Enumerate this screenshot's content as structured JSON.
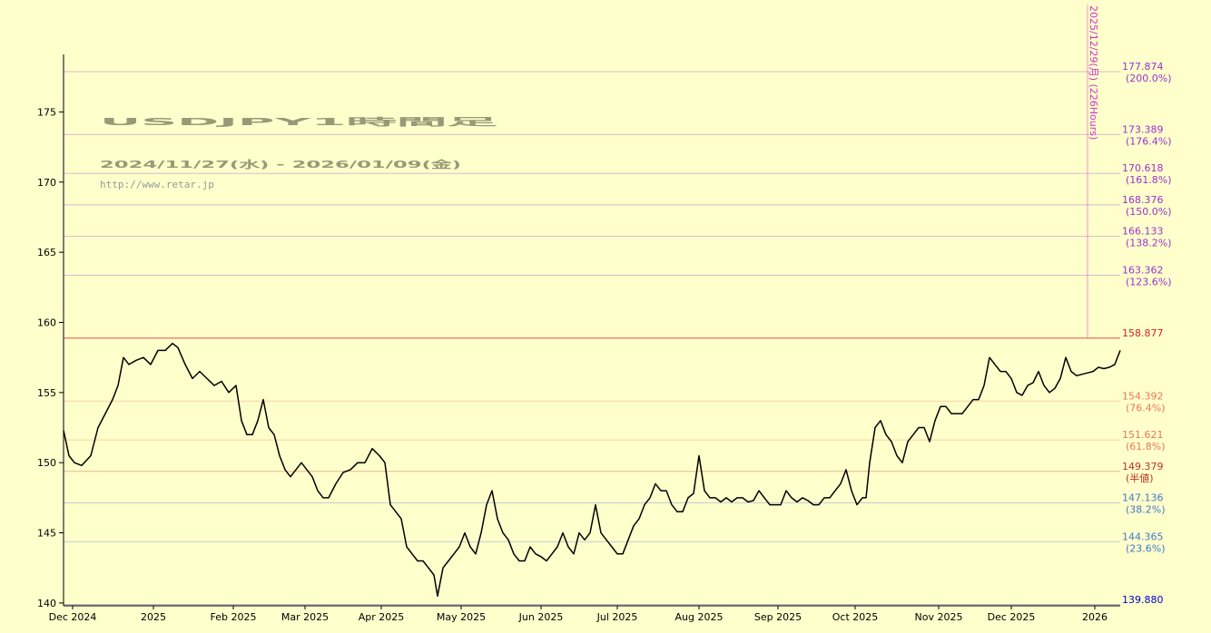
{
  "chart_data": {
    "type": "line",
    "title": "USDJPY1時間足",
    "subtitle": "2024/11/27(水) - 2026/01/09(金)",
    "url": "http://www.retar.jp",
    "color": "#000000",
    "x": [
      0,
      36,
      72,
      120,
      180,
      228,
      276,
      324,
      360,
      396,
      432,
      480,
      528,
      576,
      624,
      672,
      720,
      756,
      804,
      852,
      900,
      948,
      996,
      1044,
      1092,
      1140,
      1176,
      1212,
      1248,
      1284,
      1320,
      1356,
      1392,
      1428,
      1464,
      1500,
      1536,
      1572,
      1608,
      1644,
      1680,
      1716,
      1752,
      1800,
      1848,
      1896,
      1944,
      1992,
      2040,
      2088,
      2124,
      2160,
      2196,
      2232,
      2268,
      2304,
      2340,
      2376,
      2412,
      2448,
      2472,
      2508,
      2544,
      2580,
      2616,
      2652,
      2688,
      2724,
      2760,
      2796,
      2832,
      2868,
      2904,
      2940,
      2976,
      3012,
      3048,
      3084,
      3120,
      3156,
      3192,
      3228,
      3264,
      3300,
      3336,
      3372,
      3408,
      3444,
      3480,
      3516,
      3552,
      3588,
      3624,
      3660,
      3696,
      3732,
      3768,
      3804,
      3840,
      3876,
      3912,
      3948,
      3984,
      4020,
      4056,
      4092,
      4128,
      4164,
      4200,
      4236,
      4272,
      4308,
      4344,
      4380,
      4416,
      4452,
      4488,
      4524,
      4560,
      4596,
      4632,
      4668,
      4704,
      4740,
      4776,
      4812,
      4848,
      4884,
      4920,
      4956,
      4992,
      5028,
      5064,
      5100,
      5136,
      5172,
      5208,
      5244,
      5280,
      5304,
      5328,
      5364,
      5400,
      5436,
      5472,
      5508,
      5544,
      5580,
      5616,
      5652,
      5688,
      5724,
      5760,
      5796,
      5832,
      5868,
      5904,
      5940,
      5976,
      6012,
      6048,
      6084,
      6120,
      6156,
      6192,
      6228,
      6264,
      6300,
      6336,
      6372,
      6408,
      6444,
      6480,
      6516,
      6552,
      6588,
      6624,
      6660,
      6696,
      6732,
      6768,
      6804,
      6840,
      6876,
      6912,
      6948,
      6984
    ],
    "values": [
      152.3,
      150.5,
      150,
      149.8,
      150.5,
      152.5,
      153.5,
      154.5,
      155.5,
      157.5,
      157,
      157.3,
      157.5,
      157,
      158,
      158,
      158.5,
      158.2,
      157,
      156,
      156.5,
      156,
      155.5,
      155.8,
      155,
      155.5,
      153,
      152,
      152,
      153,
      154.5,
      152.5,
      152,
      150.5,
      149.5,
      149,
      149.5,
      150,
      149.5,
      149,
      148,
      147.5,
      147.5,
      148.5,
      149.3,
      149.5,
      150,
      150,
      151,
      150.5,
      150,
      147,
      146.5,
      146,
      144,
      143.5,
      143,
      143,
      142.5,
      142,
      140.5,
      142.5,
      143,
      143.5,
      144,
      145,
      144,
      143.5,
      145,
      147,
      148,
      146,
      145,
      144.5,
      143.5,
      143,
      143,
      144,
      143.5,
      143.3,
      143,
      143.5,
      144,
      145,
      144,
      143.5,
      145,
      144.5,
      145,
      147,
      145,
      144.5,
      144,
      143.5,
      143.5,
      144.5,
      145.5,
      146,
      147,
      147.5,
      148.5,
      148,
      148,
      147,
      146.5,
      146.5,
      147.5,
      147.8,
      150.5,
      148,
      147.5,
      147.5,
      147.2,
      147.5,
      147.2,
      147.5,
      147.5,
      147.2,
      147.3,
      148,
      147.5,
      147,
      147,
      147,
      148,
      147.5,
      147.2,
      147.5,
      147.3,
      147,
      147,
      147.5,
      147.5,
      148,
      148.5,
      149.5,
      148,
      147,
      147.5,
      147.5,
      150,
      152.5,
      153,
      152,
      151.5,
      150.5,
      150,
      151.5,
      152,
      152.5,
      152.5,
      151.5,
      153,
      154,
      154,
      153.5,
      153.5,
      153.5,
      154,
      154.5,
      154.5,
      155.5,
      157.5,
      157,
      156.5,
      156.5,
      156,
      155,
      154.8,
      155.5,
      155.7,
      156.5,
      155.5,
      155,
      155.3,
      156,
      157.5,
      156.5,
      156.2,
      156.3,
      156.4,
      156.5,
      156.8,
      156.7,
      156.8,
      157,
      158
    ],
    "xlim": [
      0,
      6984
    ],
    "xticks": [
      {
        "value": 60,
        "label": "Dec 2024"
      },
      {
        "value": 594,
        "label": "2025"
      },
      {
        "value": 1122,
        "label": "Feb 2025"
      },
      {
        "value": 1596,
        "label": "Mar 2025"
      },
      {
        "value": 2100,
        "label": "Apr 2025"
      },
      {
        "value": 2628,
        "label": "May 2025"
      },
      {
        "value": 3156,
        "label": "Jun 2025"
      },
      {
        "value": 3660,
        "label": "Jul 2025"
      },
      {
        "value": 4200,
        "label": "Aug 2025"
      },
      {
        "value": 4722,
        "label": "Sep 2025"
      },
      {
        "value": 5232,
        "label": "Oct 2025"
      },
      {
        "value": 5784,
        "label": "Nov 2025"
      },
      {
        "value": 6264,
        "label": "Dec 2025"
      },
      {
        "value": 6816,
        "label": "2026"
      }
    ],
    "ylim": [
      139.8,
      179.1
    ],
    "yticks": [
      140,
      145,
      150,
      155,
      160,
      165,
      170,
      175
    ],
    "levels": [
      {
        "value": 177.874,
        "label": "177.874",
        "note": "(200.0%)",
        "color": "#9933cc"
      },
      {
        "value": 173.389,
        "label": "173.389",
        "note": "(176.4%)",
        "color": "#9933cc"
      },
      {
        "value": 170.618,
        "label": "170.618",
        "note": "(161.8%)",
        "color": "#9933cc"
      },
      {
        "value": 168.376,
        "label": "168.376",
        "note": "(150.0%)",
        "color": "#9933cc"
      },
      {
        "value": 166.133,
        "label": "166.133",
        "note": "(138.2%)",
        "color": "#9933cc"
      },
      {
        "value": 163.362,
        "label": "163.362",
        "note": "(123.6%)",
        "color": "#9933cc"
      },
      {
        "value": 158.877,
        "label": "158.877",
        "color": "#dd2222"
      },
      {
        "value": 154.392,
        "label": "154.392",
        "note": "(76.4%)",
        "color": "#ee7755"
      },
      {
        "value": 151.621,
        "label": "151.621",
        "note": "(61.8%)",
        "color": "#ee7755"
      },
      {
        "value": 149.379,
        "label": "149.379",
        "note": "(半値)",
        "color": "#bb3322"
      },
      {
        "value": 147.136,
        "label": "147.136",
        "note": "(38.2%)",
        "color": "#4477cc"
      },
      {
        "value": 144.365,
        "label": "144.365",
        "note": "(23.6%)",
        "color": "#4477cc"
      },
      {
        "value": 139.88,
        "label": "139.880",
        "color": "#0000cc"
      }
    ],
    "annotation": {
      "x": 6768,
      "text": "2025/12/29(月) (226Hours)",
      "color": "#cc33cc"
    }
  }
}
